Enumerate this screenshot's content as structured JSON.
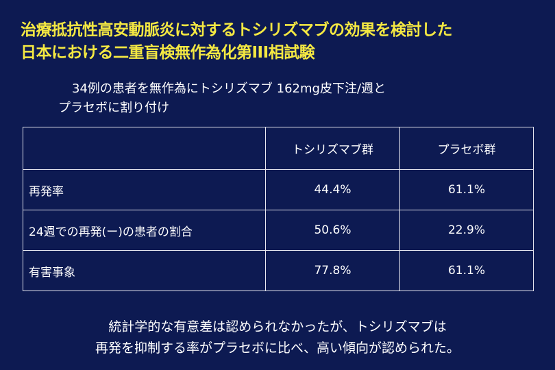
{
  "slide": {
    "background_color": "#0d1a52",
    "title_color": "#f4e842",
    "title_lines": [
      "治療抵抗性高安動脈炎に対するトシリズマブの効果を検討した",
      "日本における二重盲検無作為化第III相試験"
    ],
    "intro_lines": [
      "34例の患者を無作為にトシリズマブ 162mg皮下注/週と",
      "プラセボに割り付け"
    ],
    "table": {
      "columns": [
        "",
        "トシリズマブ群",
        "プラセボ群"
      ],
      "rows": [
        {
          "label": "再発率",
          "tocilizumab": "44.4%",
          "placebo": "61.1%"
        },
        {
          "label": "24週での再発(ー)の患者の割合",
          "tocilizumab": "50.6%",
          "placebo": "22.9%"
        },
        {
          "label": "有害事象",
          "tocilizumab": "77.8%",
          "placebo": "61.1%"
        }
      ]
    },
    "conclusion_lines": [
      "統計学的な有意差は認められなかったが、トシリズマブは",
      "再発を抑制する率がプラセボに比べ、高い傾向が認められた。"
    ]
  }
}
